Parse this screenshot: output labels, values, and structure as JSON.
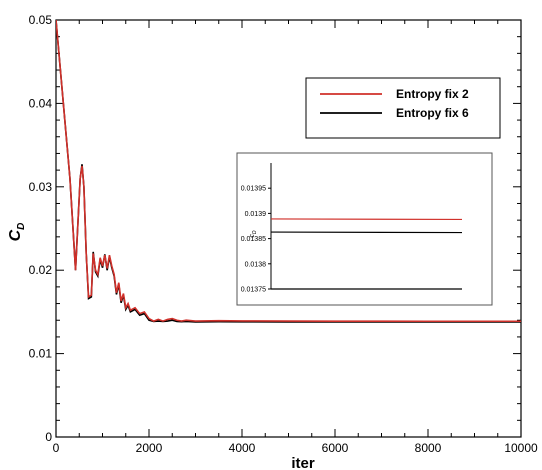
{
  "chart_data": {
    "type": "line",
    "xlabel": "iter",
    "ylabel_main": "C",
    "ylabel_sub": "D",
    "xlim": [
      0,
      10000
    ],
    "ylim": [
      0,
      0.05
    ],
    "x_ticks": [
      0,
      2000,
      4000,
      6000,
      8000,
      10000
    ],
    "x_tick_labels": [
      "0",
      "2000",
      "4000",
      "6000",
      "8000",
      "10000"
    ],
    "y_ticks": [
      0,
      0.01,
      0.02,
      0.03,
      0.04,
      0.05
    ],
    "y_tick_labels": [
      "0",
      "0.01",
      "0.02",
      "0.03",
      "0.04",
      "0.05"
    ],
    "grid": false,
    "legend_position": "top-right",
    "series": [
      {
        "name": "Entropy fix 2",
        "color": "#d0302a",
        "x": [
          0,
          300,
          420,
          520,
          560,
          600,
          650,
          700,
          760,
          800,
          850,
          900,
          950,
          1000,
          1050,
          1100,
          1150,
          1200,
          1250,
          1300,
          1350,
          1400,
          1450,
          1500,
          1550,
          1600,
          1700,
          1800,
          1900,
          2000,
          2100,
          2200,
          2300,
          2400,
          2500,
          2600,
          2700,
          2800,
          3000,
          3500,
          4000,
          5000,
          6000,
          7000,
          8000,
          9000,
          10000
        ],
        "values": [
          0.05,
          0.031,
          0.02,
          0.031,
          0.0325,
          0.03,
          0.022,
          0.0168,
          0.017,
          0.022,
          0.02,
          0.0195,
          0.0215,
          0.0205,
          0.0218,
          0.0202,
          0.0218,
          0.0205,
          0.0195,
          0.0173,
          0.0185,
          0.0163,
          0.0172,
          0.0155,
          0.016,
          0.0152,
          0.0155,
          0.0148,
          0.015,
          0.0142,
          0.0139,
          0.0141,
          0.0139,
          0.0141,
          0.0142,
          0.014,
          0.0139,
          0.014,
          0.0139,
          0.01395,
          0.01392,
          0.0139,
          0.01389,
          0.01389,
          0.01388,
          0.01388,
          0.01388
        ]
      },
      {
        "name": "Entropy fix 6",
        "color": "#000000",
        "x": [
          0,
          300,
          420,
          520,
          560,
          600,
          650,
          700,
          760,
          800,
          850,
          900,
          950,
          1000,
          1050,
          1100,
          1150,
          1200,
          1250,
          1300,
          1350,
          1400,
          1450,
          1500,
          1550,
          1600,
          1700,
          1800,
          1900,
          2000,
          2100,
          2200,
          2300,
          2400,
          2500,
          2600,
          2700,
          2800,
          3000,
          3500,
          4000,
          5000,
          6000,
          7000,
          8000,
          9000,
          10000
        ],
        "values": [
          0.05,
          0.031,
          0.02,
          0.031,
          0.0327,
          0.03,
          0.022,
          0.0166,
          0.0168,
          0.0222,
          0.0198,
          0.0193,
          0.0213,
          0.0203,
          0.0219,
          0.02,
          0.0216,
          0.0203,
          0.0193,
          0.0171,
          0.0183,
          0.0161,
          0.017,
          0.0153,
          0.0158,
          0.015,
          0.0153,
          0.0146,
          0.0148,
          0.014,
          0.01385,
          0.0139,
          0.01385,
          0.0139,
          0.014,
          0.01385,
          0.01382,
          0.01385,
          0.0138,
          0.01382,
          0.01381,
          0.0138,
          0.0138,
          0.0138,
          0.0138,
          0.0138,
          0.0138
        ]
      }
    ],
    "inset": {
      "ylabel_main": "c",
      "ylabel_sub": "D",
      "ylim": [
        0.01375,
        0.014
      ],
      "y_ticks": [
        0.01375,
        0.0138,
        0.01385,
        0.0139,
        0.01395
      ],
      "y_tick_labels": [
        "0.01375",
        "0.0138",
        "0.01385",
        "0.0139",
        "0.01395"
      ],
      "series": [
        {
          "name": "Entropy fix 2",
          "color": "#d0302a",
          "values": [
            0.013889,
            0.013888
          ]
        },
        {
          "name": "Entropy fix 6",
          "color": "#000000",
          "values": [
            0.013863,
            0.013862
          ]
        },
        {
          "name": "",
          "color": "#000000",
          "values": [
            0.01375,
            0.01375
          ]
        }
      ]
    }
  }
}
